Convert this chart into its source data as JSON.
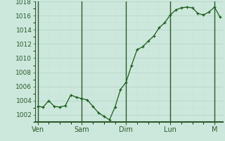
{
  "background_color": "#cce8dc",
  "plot_bg_color": "#cce8dc",
  "line_color": "#1a5c1a",
  "marker_color": "#1a5c1a",
  "grid_color": "#b8d4c8",
  "grid_color_minor": "#c8ddd5",
  "ylim": [
    1001,
    1018
  ],
  "yticks": [
    1001,
    1003,
    1005,
    1007,
    1009,
    1011,
    1013,
    1015,
    1017
  ],
  "x_labels": [
    "Ven",
    "Sam",
    "Dim",
    "Lun",
    "M"
  ],
  "x_day_positions": [
    0,
    8,
    16,
    24,
    32
  ],
  "data_x": [
    0,
    1,
    2,
    3,
    4,
    5,
    6,
    7,
    8,
    9,
    10,
    11,
    12,
    13,
    14,
    15,
    16,
    17,
    18,
    19,
    20,
    21,
    22,
    23,
    24,
    25,
    26,
    27,
    28,
    29,
    30,
    31,
    32,
    33
  ],
  "data_y": [
    1003.2,
    1003.1,
    1004.0,
    1003.2,
    1003.1,
    1003.3,
    1004.8,
    1004.5,
    1004.3,
    1004.1,
    1003.2,
    1002.3,
    1001.8,
    1001.3,
    1003.1,
    1005.6,
    1006.6,
    1009.0,
    1011.2,
    1011.6,
    1012.4,
    1013.1,
    1014.3,
    1015.0,
    1016.1,
    1016.8,
    1017.1,
    1017.2,
    1017.1,
    1016.3,
    1016.1,
    1016.5,
    1017.2,
    1015.8
  ],
  "tick_label_fontsize": 6.5,
  "axis_label_fontsize": 7,
  "spine_color": "#2d5a2d",
  "axis_color": "#2d5a2d"
}
